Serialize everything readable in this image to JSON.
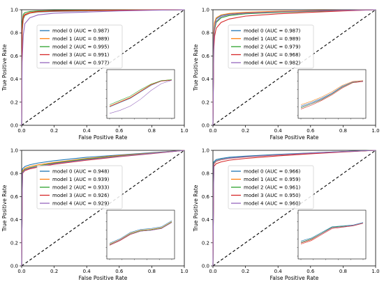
{
  "chart_data": [
    {
      "type": "line",
      "xlabel": "False Positive Rate",
      "ylabel": "True Positive Rate",
      "xlim": [
        0.0,
        1.0
      ],
      "ylim": [
        0.0,
        1.0
      ],
      "xticks": [
        "0.0",
        "0.2",
        "0.4",
        "0.6",
        "0.8",
        "1.0"
      ],
      "yticks": [
        "0.0",
        "0.2",
        "0.4",
        "0.6",
        "0.8",
        "1.0"
      ],
      "legend_position": "upper-left",
      "series": [
        {
          "name": "model 0 (AUC = 0.987)",
          "color": "#1f77b4",
          "x": [
            0,
            0.003,
            0.01,
            0.02,
            0.05,
            0.1,
            0.2,
            0.4,
            0.6,
            0.8,
            1.0
          ],
          "y": [
            0,
            0.8,
            0.92,
            0.95,
            0.97,
            0.98,
            0.985,
            0.99,
            0.995,
            0.998,
            1.0
          ]
        },
        {
          "name": "model 1 (AUC = 0.989)",
          "color": "#ff7f0e",
          "x": [
            0,
            0.003,
            0.01,
            0.02,
            0.05,
            0.1,
            0.2,
            0.4,
            0.6,
            0.8,
            1.0
          ],
          "y": [
            0,
            0.82,
            0.93,
            0.955,
            0.972,
            0.982,
            0.988,
            0.992,
            0.996,
            0.998,
            1.0
          ]
        },
        {
          "name": "model 2 (AUC = 0.995)",
          "color": "#2ca02c",
          "x": [
            0,
            0.003,
            0.01,
            0.02,
            0.05,
            0.1,
            0.2,
            0.4,
            0.6,
            0.8,
            1.0
          ],
          "y": [
            0,
            0.88,
            0.96,
            0.975,
            0.985,
            0.99,
            0.994,
            0.997,
            0.998,
            0.999,
            1.0
          ]
        },
        {
          "name": "model 3 (AUC = 0.991)",
          "color": "#d62728",
          "x": [
            0,
            0.003,
            0.01,
            0.02,
            0.05,
            0.1,
            0.2,
            0.4,
            0.6,
            0.8,
            1.0
          ],
          "y": [
            0,
            0.84,
            0.94,
            0.96,
            0.976,
            0.985,
            0.99,
            0.994,
            0.997,
            0.999,
            1.0
          ]
        },
        {
          "name": "model 4 (AUC = 0.977)",
          "color": "#9467bd",
          "x": [
            0,
            0.003,
            0.01,
            0.02,
            0.05,
            0.1,
            0.2,
            0.4,
            0.6,
            0.8,
            1.0
          ],
          "y": [
            0,
            0.55,
            0.78,
            0.88,
            0.93,
            0.955,
            0.97,
            0.98,
            0.99,
            0.996,
            1.0
          ]
        }
      ],
      "inset": {
        "xscale": "log",
        "series": [
          {
            "color": "#1f77b4",
            "y": [
              0.2,
              0.3,
              0.4,
              0.55,
              0.7,
              0.8,
              0.82
            ]
          },
          {
            "color": "#ff7f0e",
            "y": [
              0.22,
              0.32,
              0.42,
              0.57,
              0.72,
              0.81,
              0.83
            ]
          },
          {
            "color": "#2ca02c",
            "y": [
              0.25,
              0.35,
              0.45,
              0.6,
              0.73,
              0.81,
              0.83
            ]
          },
          {
            "color": "#d62728",
            "y": [
              0.21,
              0.31,
              0.41,
              0.56,
              0.71,
              0.8,
              0.82
            ]
          },
          {
            "color": "#9467bd",
            "y": [
              0.05,
              0.12,
              0.22,
              0.38,
              0.58,
              0.74,
              0.82
            ]
          }
        ]
      }
    },
    {
      "type": "line",
      "xlabel": "False Positive Rate",
      "ylabel": "True Positive Rate",
      "xlim": [
        0.0,
        1.0
      ],
      "ylim": [
        0.0,
        1.0
      ],
      "xticks": [
        "0.0",
        "0.2",
        "0.4",
        "0.6",
        "0.8",
        "1.0"
      ],
      "yticks": [
        "0.0",
        "0.2",
        "0.4",
        "0.6",
        "0.8",
        "1.0"
      ],
      "legend_position": "upper-left",
      "series": [
        {
          "name": "model 0 (AUC = 0.987)",
          "color": "#1f77b4",
          "x": [
            0,
            0.005,
            0.01,
            0.02,
            0.05,
            0.1,
            0.2,
            0.4,
            0.6,
            0.8,
            1.0
          ],
          "y": [
            0,
            0.78,
            0.88,
            0.92,
            0.95,
            0.965,
            0.975,
            0.985,
            0.99,
            0.995,
            1.0
          ]
        },
        {
          "name": "model 1 (AUC = 0.989)",
          "color": "#ff7f0e",
          "x": [
            0,
            0.005,
            0.01,
            0.02,
            0.05,
            0.1,
            0.2,
            0.4,
            0.6,
            0.8,
            1.0
          ],
          "y": [
            0,
            0.8,
            0.89,
            0.93,
            0.955,
            0.968,
            0.978,
            0.987,
            0.992,
            0.996,
            1.0
          ]
        },
        {
          "name": "model 2 (AUC = 0.979)",
          "color": "#2ca02c",
          "x": [
            0,
            0.005,
            0.01,
            0.02,
            0.05,
            0.1,
            0.2,
            0.4,
            0.6,
            0.8,
            1.0
          ],
          "y": [
            0,
            0.72,
            0.83,
            0.89,
            0.93,
            0.95,
            0.965,
            0.978,
            0.986,
            0.993,
            1.0
          ]
        },
        {
          "name": "model 3 (AUC = 0.968)",
          "color": "#d62728",
          "x": [
            0,
            0.005,
            0.01,
            0.02,
            0.05,
            0.1,
            0.2,
            0.4,
            0.6,
            0.8,
            1.0
          ],
          "y": [
            0,
            0.65,
            0.77,
            0.84,
            0.89,
            0.92,
            0.945,
            0.965,
            0.978,
            0.99,
            1.0
          ]
        },
        {
          "name": "model 4 (AUC = 0.982)",
          "color": "#9467bd",
          "x": [
            0,
            0.005,
            0.01,
            0.02,
            0.05,
            0.1,
            0.2,
            0.4,
            0.6,
            0.8,
            1.0
          ],
          "y": [
            0,
            0.74,
            0.85,
            0.9,
            0.94,
            0.958,
            0.97,
            0.982,
            0.989,
            0.995,
            1.0
          ]
        }
      ],
      "inset": {
        "xscale": "log",
        "series": [
          {
            "color": "#1f77b4",
            "y": [
              0.22,
              0.3,
              0.4,
              0.52,
              0.68,
              0.78,
              0.8
            ]
          },
          {
            "color": "#ff7f0e",
            "y": [
              0.25,
              0.33,
              0.43,
              0.55,
              0.7,
              0.79,
              0.81
            ]
          },
          {
            "color": "#2ca02c",
            "y": [
              0.18,
              0.27,
              0.37,
              0.5,
              0.66,
              0.77,
              0.8
            ]
          },
          {
            "color": "#d62728",
            "y": [
              0.15,
              0.24,
              0.35,
              0.48,
              0.64,
              0.76,
              0.79
            ]
          },
          {
            "color": "#9467bd",
            "y": [
              0.2,
              0.28,
              0.38,
              0.51,
              0.67,
              0.78,
              0.8
            ]
          }
        ]
      }
    },
    {
      "type": "line",
      "xlabel": "False Positive Rate",
      "ylabel": "True Positive Rate",
      "xlim": [
        0.0,
        1.0
      ],
      "ylim": [
        0.0,
        1.0
      ],
      "xticks": [
        "0.0",
        "0.2",
        "0.4",
        "0.6",
        "0.8",
        "1.0"
      ],
      "yticks": [
        "0.0",
        "0.2",
        "0.4",
        "0.6",
        "0.8",
        "1.0"
      ],
      "legend_position": "upper-left",
      "series": [
        {
          "name": "model 0 (AUC = 0.948)",
          "color": "#1f77b4",
          "x": [
            0,
            0.005,
            0.02,
            0.05,
            0.1,
            0.2,
            0.4,
            0.6,
            0.8,
            1.0
          ],
          "y": [
            0,
            0.84,
            0.86,
            0.875,
            0.89,
            0.91,
            0.94,
            0.96,
            0.98,
            1.0
          ]
        },
        {
          "name": "model 1 (AUC = 0.939)",
          "color": "#ff7f0e",
          "x": [
            0,
            0.005,
            0.02,
            0.05,
            0.1,
            0.2,
            0.4,
            0.6,
            0.8,
            1.0
          ],
          "y": [
            0,
            0.82,
            0.845,
            0.86,
            0.875,
            0.895,
            0.93,
            0.955,
            0.977,
            1.0
          ]
        },
        {
          "name": "model 2 (AUC = 0.933)",
          "color": "#2ca02c",
          "x": [
            0,
            0.005,
            0.02,
            0.05,
            0.1,
            0.2,
            0.4,
            0.6,
            0.8,
            1.0
          ],
          "y": [
            0,
            0.81,
            0.835,
            0.85,
            0.865,
            0.89,
            0.925,
            0.95,
            0.975,
            1.0
          ]
        },
        {
          "name": "model 3 (AUC = 0.926)",
          "color": "#d62728",
          "x": [
            0,
            0.005,
            0.02,
            0.05,
            0.1,
            0.2,
            0.4,
            0.6,
            0.8,
            1.0
          ],
          "y": [
            0,
            0.8,
            0.825,
            0.84,
            0.855,
            0.88,
            0.915,
            0.945,
            0.972,
            1.0
          ]
        },
        {
          "name": "model 4 (AUC = 0.929)",
          "color": "#9467bd",
          "x": [
            0,
            0.005,
            0.02,
            0.05,
            0.1,
            0.2,
            0.4,
            0.6,
            0.8,
            1.0
          ],
          "y": [
            0,
            0.805,
            0.83,
            0.845,
            0.86,
            0.885,
            0.92,
            0.948,
            0.974,
            1.0
          ]
        }
      ],
      "inset": {
        "xscale": "log",
        "series": [
          {
            "color": "#1f77b4",
            "y": [
              0.3,
              0.4,
              0.55,
              0.62,
              0.64,
              0.68,
              0.82
            ]
          },
          {
            "color": "#ff7f0e",
            "y": [
              0.28,
              0.38,
              0.53,
              0.6,
              0.62,
              0.66,
              0.8
            ]
          },
          {
            "color": "#2ca02c",
            "y": [
              0.27,
              0.37,
              0.52,
              0.59,
              0.61,
              0.65,
              0.79
            ]
          },
          {
            "color": "#d62728",
            "y": [
              0.25,
              0.36,
              0.5,
              0.58,
              0.6,
              0.64,
              0.78
            ]
          },
          {
            "color": "#9467bd",
            "y": [
              0.26,
              0.37,
              0.51,
              0.58,
              0.6,
              0.64,
              0.78
            ]
          }
        ]
      }
    },
    {
      "type": "line",
      "xlabel": "False Positive Rate",
      "ylabel": "True Positive Rate",
      "xlim": [
        0.0,
        1.0
      ],
      "ylim": [
        0.0,
        1.0
      ],
      "xticks": [
        "0.0",
        "0.2",
        "0.4",
        "0.6",
        "0.8",
        "1.0"
      ],
      "yticks": [
        "0.0",
        "0.2",
        "0.4",
        "0.6",
        "0.8",
        "1.0"
      ],
      "legend_position": "upper-left",
      "series": [
        {
          "name": "model 0 (AUC = 0.966)",
          "color": "#1f77b4",
          "x": [
            0,
            0.005,
            0.02,
            0.05,
            0.1,
            0.2,
            0.4,
            0.6,
            0.8,
            1.0
          ],
          "y": [
            0,
            0.9,
            0.92,
            0.93,
            0.94,
            0.95,
            0.965,
            0.978,
            0.99,
            1.0
          ]
        },
        {
          "name": "model 1 (AUC = 0.959)",
          "color": "#ff7f0e",
          "x": [
            0,
            0.005,
            0.02,
            0.05,
            0.1,
            0.2,
            0.4,
            0.6,
            0.8,
            1.0
          ],
          "y": [
            0,
            0.88,
            0.905,
            0.918,
            0.93,
            0.942,
            0.96,
            0.975,
            0.988,
            1.0
          ]
        },
        {
          "name": "model 2 (AUC = 0.961)",
          "color": "#2ca02c",
          "x": [
            0,
            0.005,
            0.02,
            0.05,
            0.1,
            0.2,
            0.4,
            0.6,
            0.8,
            1.0
          ],
          "y": [
            0,
            0.89,
            0.91,
            0.922,
            0.933,
            0.945,
            0.962,
            0.976,
            0.989,
            1.0
          ]
        },
        {
          "name": "model 3 (AUC = 0.950)",
          "color": "#d62728",
          "x": [
            0,
            0.005,
            0.02,
            0.05,
            0.1,
            0.2,
            0.4,
            0.6,
            0.8,
            1.0
          ],
          "y": [
            0,
            0.86,
            0.885,
            0.9,
            0.915,
            0.93,
            0.952,
            0.97,
            0.986,
            1.0
          ]
        },
        {
          "name": "model 4 (AUC = 0.960)",
          "color": "#9467bd",
          "x": [
            0,
            0.005,
            0.02,
            0.05,
            0.1,
            0.2,
            0.4,
            0.6,
            0.8,
            1.0
          ],
          "y": [
            0,
            0.885,
            0.908,
            0.92,
            0.932,
            0.944,
            0.961,
            0.976,
            0.989,
            1.0
          ]
        }
      ],
      "inset": {
        "xscale": "log",
        "series": [
          {
            "color": "#1f77b4",
            "y": [
              0.35,
              0.42,
              0.55,
              0.68,
              0.7,
              0.72,
              0.78
            ]
          },
          {
            "color": "#ff7f0e",
            "y": [
              0.3,
              0.38,
              0.52,
              0.66,
              0.68,
              0.71,
              0.77
            ]
          },
          {
            "color": "#2ca02c",
            "y": [
              0.32,
              0.4,
              0.53,
              0.67,
              0.69,
              0.71,
              0.77
            ]
          },
          {
            "color": "#d62728",
            "y": [
              0.28,
              0.36,
              0.5,
              0.64,
              0.67,
              0.7,
              0.76
            ]
          },
          {
            "color": "#9467bd",
            "y": [
              0.31,
              0.39,
              0.52,
              0.66,
              0.68,
              0.71,
              0.77
            ]
          }
        ]
      }
    }
  ]
}
